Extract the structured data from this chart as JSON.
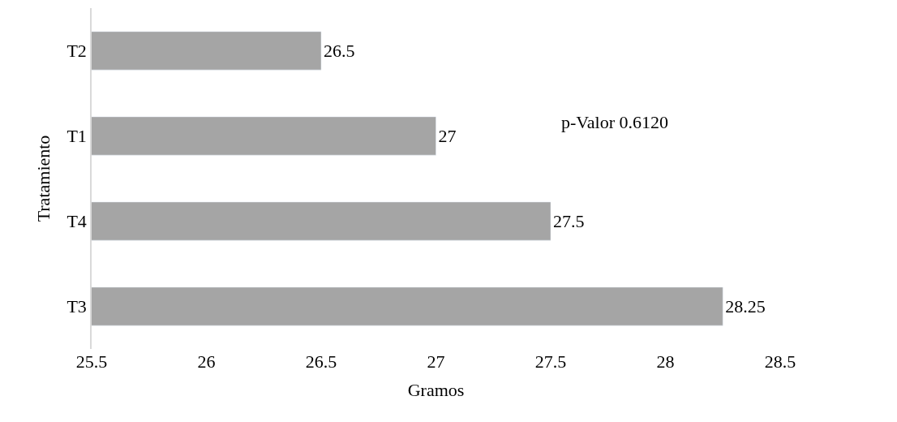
{
  "chart_data": {
    "type": "bar",
    "orientation": "horizontal",
    "xlabel": "Gramos",
    "ylabel": "Tratamiento",
    "categories": [
      "T2",
      "T1",
      "T4",
      "T3"
    ],
    "values": [
      26.5,
      27,
      27.5,
      28.25
    ],
    "color": "#a5a5a5",
    "xlim": [
      25.5,
      28.5
    ],
    "xticks": [
      25.5,
      26,
      26.5,
      27,
      27.5,
      28,
      28.5
    ],
    "data_labels": true,
    "annotations": [
      "p-Valor 0.6120"
    ]
  }
}
